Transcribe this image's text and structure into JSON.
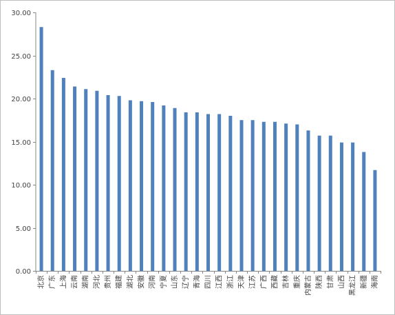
{
  "chart_data": {
    "type": "bar",
    "title": "",
    "xlabel": "",
    "ylabel": "",
    "ylim": [
      0,
      30
    ],
    "yticks": [
      "0.00",
      "5.00",
      "10.00",
      "15.00",
      "20.00",
      "25.00",
      "30.00"
    ],
    "ytick_values": [
      0,
      5,
      10,
      15,
      20,
      25,
      30
    ],
    "grid": false,
    "legend": "none",
    "bar_color": "#4f81bd",
    "categories": [
      "北京",
      "广东",
      "上海",
      "云南",
      "湖南",
      "河北",
      "贵州",
      "福建",
      "湖北",
      "安徽",
      "河南",
      "宁夏",
      "山东",
      "辽宁",
      "青海",
      "四川",
      "江西",
      "浙江",
      "天津",
      "江苏",
      "广西",
      "西藏",
      "吉林",
      "重庆",
      "内蒙古",
      "陕西",
      "甘肃",
      "山西",
      "黑龙江",
      "新疆",
      "海南"
    ],
    "values": [
      28.3,
      23.3,
      22.4,
      21.4,
      21.1,
      20.9,
      20.4,
      20.3,
      19.8,
      19.7,
      19.6,
      19.2,
      18.9,
      18.4,
      18.4,
      18.2,
      18.2,
      18.0,
      17.5,
      17.5,
      17.3,
      17.3,
      17.1,
      17.0,
      16.3,
      15.7,
      15.7,
      14.9,
      14.9,
      13.8,
      11.7
    ]
  }
}
